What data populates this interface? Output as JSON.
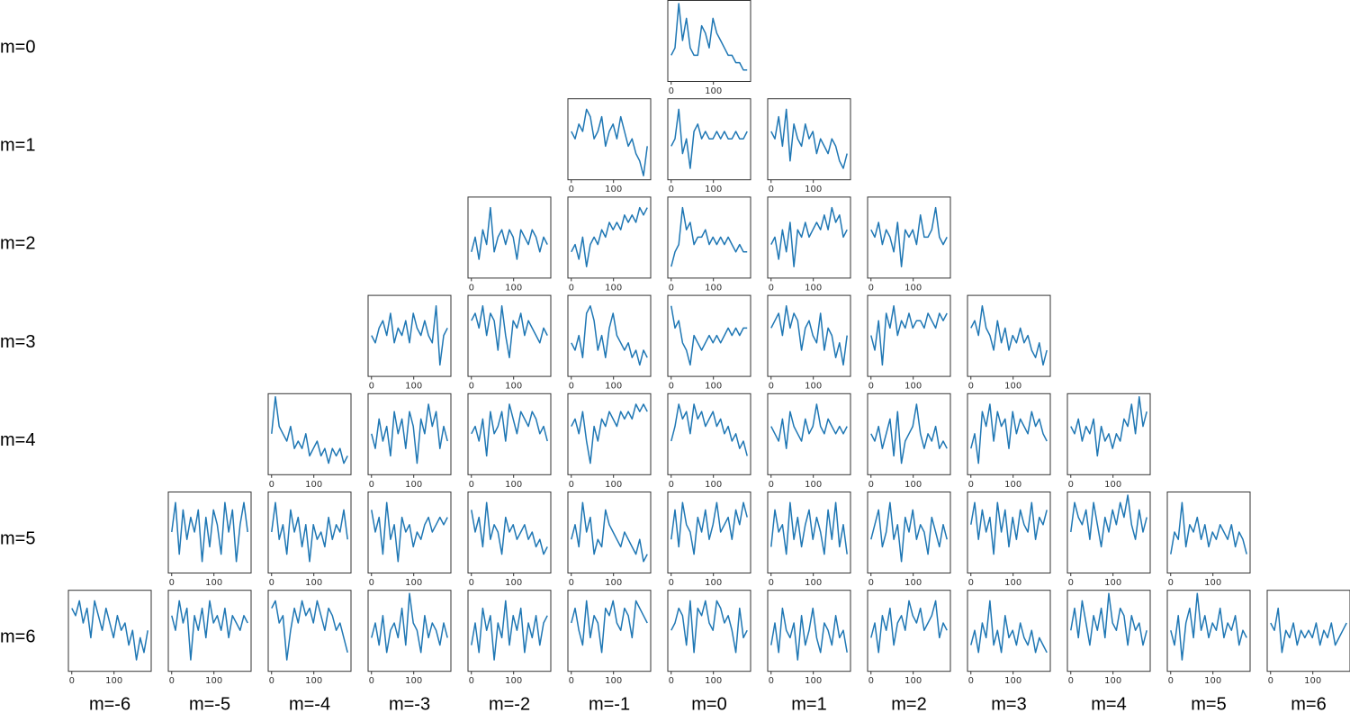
{
  "row_labels": [
    "m=0",
    "m=1",
    "m=2",
    "m=3",
    "m=4",
    "m=5",
    "m=6"
  ],
  "col_labels": [
    "m=-6",
    "m=-5",
    "m=-4",
    "m=-3",
    "m=-2",
    "m=-1",
    "m=0",
    "m=1",
    "m=2",
    "m=3",
    "m=4",
    "m=5",
    "m=6"
  ],
  "panel": {
    "type": "line",
    "x": [
      0,
      9,
      18,
      27,
      36,
      45,
      54,
      63,
      72,
      81,
      90,
      99,
      108,
      117,
      126,
      135,
      144,
      153,
      162,
      171,
      180
    ],
    "xlim": [
      -8,
      188
    ],
    "xticks": [
      0,
      100
    ],
    "ylim": [
      0,
      10
    ],
    "color": "#1f77b4"
  },
  "rows": [
    [
      [
        3,
        4,
        10,
        5,
        8,
        4,
        3,
        3,
        7,
        6,
        4,
        8,
        6,
        5,
        4,
        3,
        3,
        2,
        2,
        1,
        1
      ]
    ],
    [
      [
        6,
        5,
        7,
        6,
        9,
        8,
        5,
        6,
        8,
        4,
        6,
        7,
        5,
        8,
        6,
        4,
        5,
        3,
        2,
        0,
        4
      ],
      [
        4,
        5,
        9,
        3,
        5,
        1,
        6,
        7,
        5,
        6,
        5,
        5,
        6,
        5,
        6,
        5,
        5,
        6,
        5,
        5,
        6
      ],
      [
        6,
        5,
        8,
        4,
        9,
        2,
        7,
        5,
        4,
        7,
        5,
        6,
        3,
        5,
        4,
        3,
        5,
        4,
        2,
        1,
        3
      ]
    ],
    [
      [
        3,
        5,
        2,
        6,
        4,
        9,
        3,
        5,
        6,
        4,
        6,
        5,
        2,
        6,
        5,
        4,
        6,
        5,
        3,
        5,
        4
      ],
      [
        3,
        4,
        2,
        5,
        1,
        4,
        5,
        4,
        6,
        5,
        7,
        6,
        7,
        6,
        8,
        7,
        8,
        7,
        9,
        8,
        9
      ],
      [
        1,
        3,
        4,
        9,
        6,
        7,
        4,
        5,
        5,
        6,
        4,
        5,
        4,
        5,
        4,
        5,
        4,
        3,
        4,
        3,
        3
      ],
      [
        4,
        5,
        2,
        6,
        3,
        7,
        1,
        6,
        5,
        7,
        5,
        6,
        7,
        6,
        8,
        6,
        9,
        7,
        8,
        5,
        6
      ],
      [
        6,
        5,
        7,
        4,
        6,
        5,
        3,
        7,
        1,
        6,
        5,
        6,
        4,
        8,
        5,
        5,
        6,
        9,
        5,
        4,
        5
      ]
    ],
    [
      [
        5,
        4,
        6,
        7,
        5,
        8,
        4,
        6,
        5,
        7,
        4,
        8,
        6,
        5,
        7,
        5,
        4,
        9,
        1,
        5,
        6
      ],
      [
        7,
        8,
        6,
        9,
        5,
        8,
        7,
        3,
        9,
        5,
        2,
        7,
        6,
        8,
        5,
        7,
        6,
        5,
        4,
        6,
        5
      ],
      [
        4,
        3,
        5,
        2,
        8,
        9,
        7,
        3,
        5,
        2,
        6,
        8,
        5,
        4,
        3,
        4,
        2,
        3,
        1,
        3,
        2
      ],
      [
        9,
        6,
        7,
        4,
        3,
        1,
        5,
        4,
        3,
        4,
        5,
        4,
        5,
        4,
        5,
        6,
        5,
        6,
        5,
        6,
        6
      ],
      [
        6,
        7,
        8,
        5,
        9,
        6,
        8,
        7,
        3,
        6,
        7,
        5,
        4,
        8,
        3,
        6,
        5,
        2,
        4,
        1,
        5
      ],
      [
        5,
        3,
        7,
        1,
        8,
        6,
        9,
        5,
        7,
        6,
        8,
        6,
        7,
        7,
        6,
        8,
        7,
        6,
        8,
        7,
        8
      ],
      [
        6,
        7,
        5,
        9,
        6,
        5,
        3,
        7,
        4,
        6,
        3,
        5,
        4,
        6,
        4,
        5,
        3,
        2,
        4,
        1,
        3
      ]
    ],
    [
      [
        5,
        10,
        6,
        5,
        4,
        6,
        3,
        4,
        3,
        5,
        2,
        3,
        4,
        2,
        3,
        1,
        3,
        2,
        3,
        1,
        2
      ],
      [
        5,
        3,
        7,
        4,
        6,
        2,
        8,
        5,
        7,
        3,
        8,
        6,
        1,
        7,
        5,
        9,
        6,
        8,
        3,
        6,
        4
      ],
      [
        5,
        6,
        4,
        7,
        2,
        8,
        5,
        6,
        8,
        4,
        9,
        7,
        5,
        8,
        7,
        6,
        8,
        7,
        5,
        6,
        4
      ],
      [
        6,
        7,
        5,
        8,
        4,
        1,
        6,
        4,
        7,
        6,
        8,
        7,
        6,
        8,
        7,
        8,
        7,
        9,
        8,
        9,
        8
      ],
      [
        4,
        6,
        9,
        7,
        8,
        5,
        9,
        7,
        8,
        6,
        7,
        8,
        6,
        7,
        5,
        6,
        4,
        5,
        3,
        4,
        2
      ],
      [
        6,
        5,
        4,
        7,
        3,
        8,
        6,
        5,
        4,
        7,
        5,
        6,
        9,
        6,
        5,
        7,
        6,
        5,
        6,
        5,
        6
      ],
      [
        5,
        4,
        6,
        3,
        5,
        7,
        2,
        8,
        1,
        4,
        5,
        6,
        9,
        5,
        3,
        5,
        4,
        6,
        3,
        4,
        3
      ],
      [
        3,
        5,
        1,
        8,
        6,
        9,
        4,
        8,
        6,
        7,
        3,
        8,
        5,
        7,
        6,
        5,
        8,
        6,
        7,
        5,
        4
      ],
      [
        6,
        5,
        7,
        4,
        6,
        5,
        7,
        2,
        6,
        4,
        5,
        3,
        5,
        4,
        7,
        6,
        9,
        5,
        10,
        6,
        8
      ]
    ],
    [
      [
        5,
        9,
        2,
        8,
        4,
        7,
        5,
        8,
        1,
        7,
        3,
        8,
        6,
        2,
        9,
        5,
        8,
        1,
        6,
        9,
        5
      ],
      [
        5,
        9,
        4,
        6,
        2,
        8,
        5,
        7,
        3,
        6,
        1,
        6,
        4,
        5,
        3,
        7,
        4,
        6,
        5,
        8,
        4
      ],
      [
        8,
        5,
        7,
        2,
        9,
        4,
        6,
        1,
        7,
        5,
        6,
        3,
        5,
        4,
        6,
        7,
        5,
        6,
        7,
        6,
        7
      ],
      [
        8,
        5,
        7,
        3,
        9,
        4,
        6,
        5,
        2,
        7,
        5,
        6,
        4,
        5,
        6,
        4,
        5,
        3,
        4,
        2,
        3
      ],
      [
        4,
        6,
        3,
        9,
        5,
        7,
        2,
        4,
        3,
        8,
        6,
        5,
        4,
        3,
        5,
        4,
        3,
        2,
        4,
        1,
        2
      ],
      [
        4,
        8,
        3,
        9,
        6,
        5,
        2,
        7,
        5,
        8,
        4,
        6,
        9,
        5,
        6,
        7,
        4,
        8,
        6,
        9,
        7
      ],
      [
        3,
        8,
        5,
        6,
        2,
        9,
        4,
        7,
        3,
        6,
        8,
        4,
        7,
        5,
        2,
        8,
        4,
        9,
        3,
        6,
        2
      ],
      [
        4,
        6,
        8,
        3,
        5,
        9,
        4,
        6,
        1,
        7,
        5,
        8,
        4,
        6,
        5,
        2,
        7,
        5,
        3,
        6,
        4
      ],
      [
        6,
        9,
        4,
        8,
        5,
        7,
        2,
        9,
        5,
        8,
        3,
        7,
        4,
        8,
        6,
        5,
        9,
        4,
        7,
        6,
        8
      ],
      [
        5,
        9,
        7,
        6,
        8,
        4,
        9,
        6,
        3,
        7,
        5,
        8,
        6,
        9,
        7,
        10,
        6,
        4,
        8,
        5,
        7
      ],
      [
        2,
        5,
        4,
        9,
        3,
        6,
        5,
        7,
        4,
        6,
        3,
        5,
        4,
        6,
        5,
        4,
        6,
        3,
        5,
        4,
        2
      ]
    ],
    [
      [
        8,
        7,
        9,
        6,
        8,
        4,
        9,
        7,
        5,
        8,
        6,
        4,
        7,
        5,
        6,
        3,
        5,
        1,
        4,
        2,
        5
      ],
      [
        7,
        5,
        9,
        6,
        8,
        1,
        7,
        5,
        8,
        4,
        9,
        6,
        7,
        5,
        8,
        4,
        7,
        6,
        5,
        7,
        6
      ],
      [
        8,
        9,
        6,
        7,
        1,
        5,
        8,
        6,
        9,
        7,
        8,
        6,
        9,
        7,
        5,
        8,
        7,
        5,
        6,
        4,
        2
      ],
      [
        4,
        6,
        3,
        7,
        2,
        5,
        6,
        4,
        8,
        3,
        10,
        6,
        5,
        2,
        7,
        4,
        6,
        5,
        3,
        6,
        4
      ],
      [
        3,
        6,
        2,
        8,
        5,
        7,
        1,
        6,
        4,
        9,
        3,
        7,
        5,
        8,
        2,
        6,
        4,
        7,
        3,
        6,
        7
      ],
      [
        6,
        8,
        5,
        3,
        9,
        4,
        7,
        6,
        2,
        8,
        7,
        9,
        6,
        5,
        8,
        7,
        4,
        9,
        8,
        7,
        6
      ],
      [
        5,
        6,
        8,
        7,
        3,
        9,
        2,
        8,
        7,
        9,
        6,
        5,
        9,
        8,
        6,
        7,
        5,
        2,
        8,
        4,
        5
      ],
      [
        3,
        6,
        2,
        8,
        5,
        4,
        6,
        1,
        7,
        3,
        5,
        8,
        4,
        2,
        6,
        5,
        3,
        7,
        4,
        5,
        2
      ],
      [
        4,
        6,
        2,
        7,
        5,
        8,
        3,
        6,
        7,
        5,
        9,
        7,
        6,
        8,
        5,
        6,
        7,
        9,
        4,
        6,
        5
      ],
      [
        3,
        5,
        2,
        6,
        4,
        9,
        3,
        5,
        2,
        7,
        4,
        5,
        3,
        6,
        4,
        3,
        5,
        2,
        4,
        3,
        2
      ],
      [
        5,
        8,
        4,
        9,
        6,
        3,
        7,
        5,
        8,
        4,
        10,
        6,
        5,
        8,
        7,
        3,
        7,
        5,
        6,
        3,
        5
      ],
      [
        5,
        3,
        7,
        1,
        6,
        8,
        4,
        10,
        5,
        7,
        4,
        6,
        5,
        8,
        4,
        6,
        5,
        7,
        3,
        5,
        4
      ],
      [
        6,
        5,
        8,
        2,
        5,
        4,
        6,
        3,
        5,
        4,
        5,
        4,
        6,
        3,
        5,
        4,
        6,
        3,
        4,
        5,
        6
      ]
    ]
  ]
}
